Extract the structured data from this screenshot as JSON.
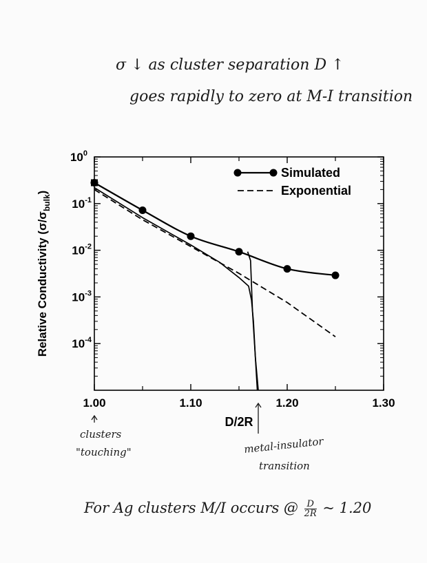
{
  "annotations": {
    "top_line1": "σ ↓ as cluster separation D ↑",
    "top_line2": "goes rapidly to zero at M-I transition",
    "touching_line1": "clusters",
    "touching_line2": "\"touching\"",
    "mi_line1": "metal-insulator",
    "mi_line2": "transition",
    "bottom_prefix": "For Ag clusters M/I occurs @",
    "bottom_frac_num": "D",
    "bottom_frac_den": "2R",
    "bottom_suffix": "~ 1.20"
  },
  "chart_data": {
    "type": "line",
    "xlabel": "D/2R",
    "ylabel": "Relative Conductivity (σ/σ",
    "ylabel_sub": "bulk",
    "ylabel_close": ")",
    "xlim": [
      1.0,
      1.3
    ],
    "ylim_log10": [
      -5.0,
      0.0
    ],
    "y_scale": "log",
    "x_ticks": [
      "1.00",
      "1.10",
      "1.20",
      "1.30"
    ],
    "x_tick_values": [
      1.0,
      1.1,
      1.2,
      1.3
    ],
    "y_ticks": [
      {
        "base": "10",
        "exp": "0",
        "value": 1
      },
      {
        "base": "10",
        "exp": "-1",
        "value": 0.1
      },
      {
        "base": "10",
        "exp": "-2",
        "value": 0.01
      },
      {
        "base": "10",
        "exp": "-3",
        "value": 0.001
      },
      {
        "base": "10",
        "exp": "-4",
        "value": 0.0001
      }
    ],
    "legend_position": "top-right",
    "series": [
      {
        "name": "Simulated",
        "style": "solid-markers",
        "x": [
          1.0,
          1.05,
          1.1,
          1.15,
          1.2,
          1.25
        ],
        "y": [
          0.28,
          0.072,
          0.02,
          0.0093,
          0.004,
          0.0029
        ]
      },
      {
        "name": "Exponential",
        "style": "dashed",
        "x": [
          1.0,
          1.05,
          1.1,
          1.15,
          1.2,
          1.25
        ],
        "y": [
          0.2,
          0.045,
          0.012,
          0.0032,
          0.00076,
          0.00014
        ]
      },
      {
        "name": "",
        "style": "solid-thin",
        "x": [
          1.0,
          1.05,
          1.1,
          1.13,
          1.15,
          1.16,
          1.163,
          1.165,
          1.167,
          1.169
        ],
        "y": [
          0.22,
          0.05,
          0.013,
          0.0055,
          0.0026,
          0.0017,
          0.00085,
          0.0003,
          5e-05,
          1e-05
        ]
      },
      {
        "name": "",
        "style": "solid-thin",
        "x": [
          1.159,
          1.162,
          1.164,
          1.167,
          1.17
        ],
        "y": [
          0.0093,
          0.006,
          0.0005,
          5e-05,
          1e-05
        ]
      }
    ],
    "callouts": [
      "1.00",
      "1.17"
    ]
  }
}
